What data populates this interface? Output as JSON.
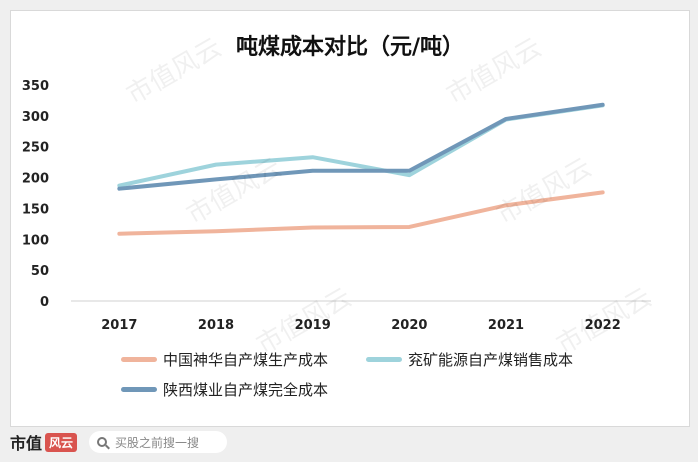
{
  "chart_data": {
    "type": "line",
    "title": "吨煤成本对比（元/吨）",
    "categories": [
      "2017",
      "2018",
      "2019",
      "2020",
      "2021",
      "2022"
    ],
    "ylim": [
      0,
      350
    ],
    "yticks": [
      0,
      50,
      100,
      150,
      200,
      250,
      300,
      350
    ],
    "grid": false,
    "legend_position": "bottom",
    "series": [
      {
        "name": "中国神华自产煤生产成本",
        "color": "#f0b49c",
        "values": [
          109,
          113,
          119,
          120,
          155,
          176
        ]
      },
      {
        "name": "兖矿能源自产煤销售成本",
        "color": "#9ed3dc",
        "values": [
          187,
          221,
          233,
          204,
          294,
          317
        ]
      },
      {
        "name": "陕西煤业自产煤完全成本",
        "color": "#7097b8",
        "values": [
          182,
          197,
          211,
          211,
          295,
          318
        ]
      }
    ]
  },
  "footer": {
    "brand": "市值",
    "brand_mark": "风云",
    "search_placeholder": "买股之前搜一搜"
  },
  "watermark_text": "市值风云"
}
